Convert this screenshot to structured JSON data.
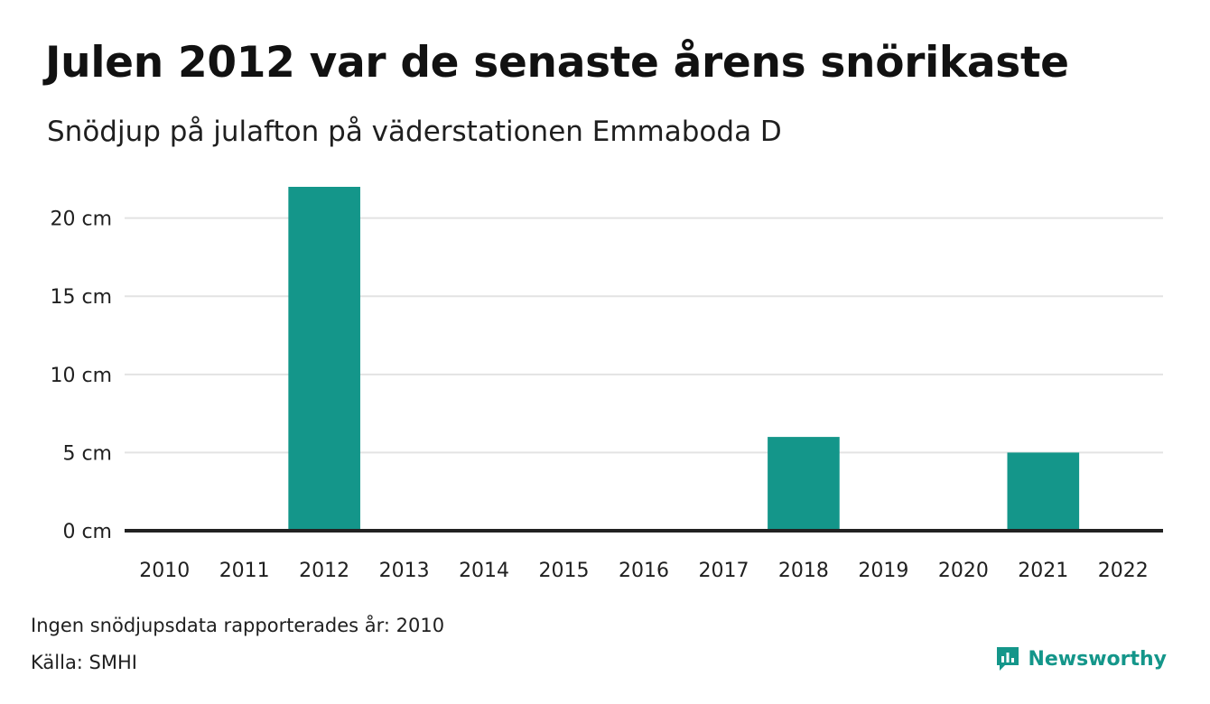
{
  "title": "Julen 2012 var de senaste årens snörikaste",
  "subtitle": "Snödjup på julafton på väderstationen Emmaboda D",
  "footer": {
    "note": "Ingen snödjupsdata rapporterades år: 2010",
    "source": "Källa: SMHI",
    "brand": "Newsworthy"
  },
  "colors": {
    "bar": "#14968a",
    "grid": "#e3e3e3",
    "baseline": "#222222",
    "brand": "#14968a"
  },
  "chart_data": {
    "type": "bar",
    "title": "Julen 2012 var de senaste årens snörikaste",
    "subtitle": "Snödjup på julafton på väderstationen Emmaboda D",
    "categories": [
      "2010",
      "2011",
      "2012",
      "2013",
      "2014",
      "2015",
      "2016",
      "2017",
      "2018",
      "2019",
      "2020",
      "2021",
      "2022"
    ],
    "values": [
      null,
      0,
      22,
      0,
      0,
      0,
      0,
      0,
      6,
      0,
      0,
      5,
      0
    ],
    "unit": "cm",
    "ylim": [
      0,
      22
    ],
    "yticks": [
      0,
      5,
      10,
      15,
      20
    ],
    "ytick_labels": [
      "0 cm",
      "5 cm",
      "10 cm",
      "15 cm",
      "20 cm"
    ],
    "grid": true,
    "xlabel": "",
    "ylabel": ""
  }
}
